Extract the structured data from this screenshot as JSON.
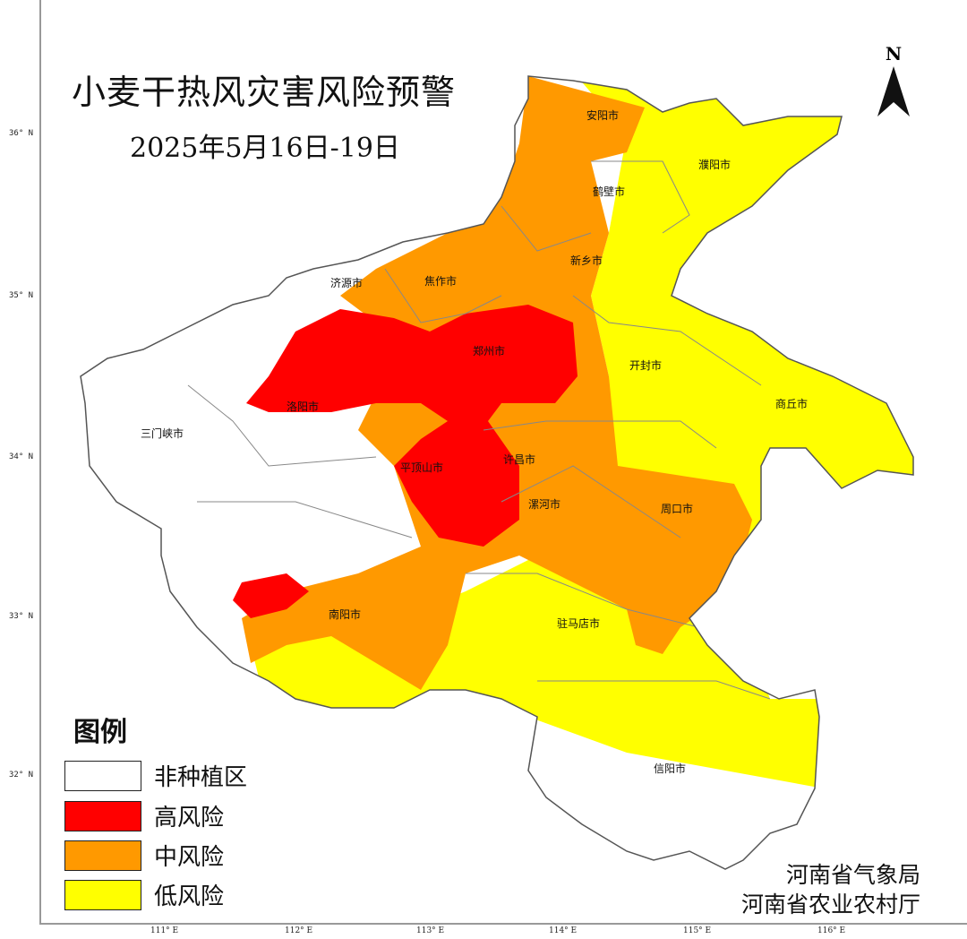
{
  "title": "小麦干热风灾害风险预警",
  "subtitle": "2025年5月16日-19日",
  "north_arrow": {
    "label": "N",
    "icon": "north-arrow-icon"
  },
  "lat_labels": [
    "36° N",
    "35° N",
    "34° N",
    "33° N",
    "32° N"
  ],
  "lon_labels": [
    "111° E",
    "112° E",
    "113° E",
    "114° E",
    "115° E",
    "116° E"
  ],
  "cities": [
    "安阳市",
    "濮阳市",
    "鹤壁市",
    "新乡市",
    "济源市",
    "焦作市",
    "郑州市",
    "开封市",
    "商丘市",
    "洛阳市",
    "三门峡市",
    "平顶山市",
    "许昌市",
    "漯河市",
    "周口市",
    "南阳市",
    "驻马店市",
    "信阳市"
  ],
  "legend": {
    "title": "图例",
    "items": [
      {
        "label": "非种植区",
        "color": "#ffffff"
      },
      {
        "label": "高风险",
        "color": "#ff0000"
      },
      {
        "label": "中风险",
        "color": "#ff9900"
      },
      {
        "label": "低风险",
        "color": "#ffff00"
      }
    ]
  },
  "credits": [
    "河南省气象局",
    "河南省农业农村厅"
  ]
}
